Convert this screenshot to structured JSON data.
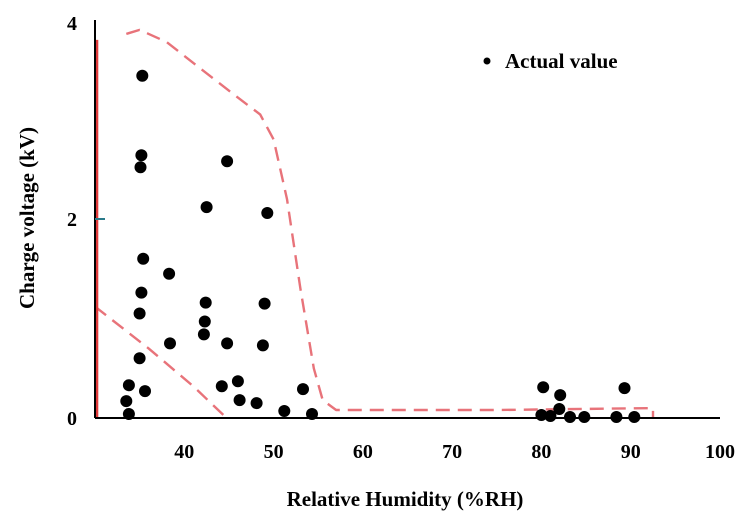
{
  "chart_data": {
    "type": "scatter",
    "title": "",
    "xlabel": "Relative Humidity (%RH)",
    "ylabel": "Charge voltage (kV)",
    "xlim": [
      30,
      100
    ],
    "ylim": [
      0,
      4
    ],
    "x_ticks": [
      "40",
      "50",
      "60",
      "70",
      "80",
      "90",
      "100"
    ],
    "y_ticks": [
      "0",
      "2",
      "4"
    ],
    "grid": false,
    "legend": {
      "position": "top-right",
      "label": "Actual value"
    },
    "series": [
      {
        "name": "Actual value",
        "color": "#000000",
        "points": [
          [
            35.3,
            3.44
          ],
          [
            35.2,
            2.64
          ],
          [
            35.1,
            2.52
          ],
          [
            44.8,
            2.58
          ],
          [
            42.5,
            2.12
          ],
          [
            49.3,
            2.06
          ],
          [
            35.4,
            1.6
          ],
          [
            38.3,
            1.45
          ],
          [
            35.2,
            1.26
          ],
          [
            35.0,
            1.05
          ],
          [
            42.4,
            1.16
          ],
          [
            49.0,
            1.15
          ],
          [
            42.3,
            0.97
          ],
          [
            42.2,
            0.84
          ],
          [
            38.4,
            0.75
          ],
          [
            44.8,
            0.75
          ],
          [
            48.8,
            0.73
          ],
          [
            35.0,
            0.6
          ],
          [
            33.8,
            0.33
          ],
          [
            35.6,
            0.27
          ],
          [
            33.5,
            0.17
          ],
          [
            33.8,
            0.04
          ],
          [
            44.2,
            0.32
          ],
          [
            46.0,
            0.37
          ],
          [
            46.2,
            0.18
          ],
          [
            48.1,
            0.15
          ],
          [
            53.3,
            0.29
          ],
          [
            51.2,
            0.07
          ],
          [
            54.3,
            0.04
          ],
          [
            80.2,
            0.31
          ],
          [
            82.1,
            0.23
          ],
          [
            89.3,
            0.3
          ],
          [
            82.0,
            0.09
          ],
          [
            80.0,
            0.03
          ],
          [
            81.0,
            0.02
          ],
          [
            83.2,
            0.01
          ],
          [
            84.8,
            0.01
          ],
          [
            88.4,
            0.01
          ],
          [
            90.4,
            0.01
          ]
        ]
      }
    ],
    "annotations": [
      {
        "type": "dashed-region",
        "color": "#e8737a",
        "points": [
          [
            33.5,
            3.86
          ],
          [
            35.0,
            3.9
          ],
          [
            38.0,
            3.78
          ],
          [
            42.0,
            3.5
          ],
          [
            46.0,
            3.22
          ],
          [
            48.5,
            3.05
          ],
          [
            50.0,
            2.8
          ],
          [
            51.5,
            2.2
          ],
          [
            53.0,
            1.3
          ],
          [
            54.5,
            0.5
          ],
          [
            55.5,
            0.18
          ],
          [
            57.0,
            0.08
          ],
          [
            65.0,
            0.08
          ],
          [
            75.0,
            0.08
          ],
          [
            92.5,
            0.1
          ],
          [
            92.5,
            0.0
          ]
        ]
      },
      {
        "type": "dashed-line",
        "color": "#e8737a",
        "points": [
          [
            30.0,
            1.12
          ],
          [
            36.0,
            0.7
          ],
          [
            41.0,
            0.32
          ],
          [
            44.5,
            0.02
          ]
        ]
      },
      {
        "type": "solid-line",
        "color": "#e03a3a",
        "points": [
          [
            30.2,
            3.8
          ],
          [
            30.2,
            0.0
          ]
        ]
      }
    ]
  }
}
